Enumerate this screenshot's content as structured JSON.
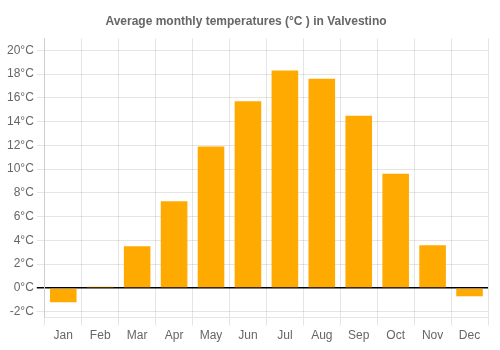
{
  "chart_data": {
    "type": "bar",
    "title": "Average monthly temperatures (°C ) in Valvestino",
    "categories": [
      "Jan",
      "Feb",
      "Mar",
      "Apr",
      "May",
      "Jun",
      "Jul",
      "Aug",
      "Sep",
      "Oct",
      "Nov",
      "Dec"
    ],
    "values": [
      -1.2,
      0.1,
      3.5,
      7.3,
      11.9,
      15.7,
      18.3,
      17.6,
      14.5,
      9.6,
      3.6,
      -0.7
    ],
    "color": "#FFAA00",
    "ylim": [
      -2.5,
      21.0
    ],
    "yticks": [
      {
        "value": -2,
        "label": "-2°C"
      },
      {
        "value": 0,
        "label": "0°C"
      },
      {
        "value": 2,
        "label": "2°C"
      },
      {
        "value": 4,
        "label": "4°C"
      },
      {
        "value": 6,
        "label": "6°C"
      },
      {
        "value": 8,
        "label": "8°C"
      },
      {
        "value": 10,
        "label": "10°C"
      },
      {
        "value": 12,
        "label": "12°C"
      },
      {
        "value": 14,
        "label": "14°C"
      },
      {
        "value": 16,
        "label": "16°C"
      },
      {
        "value": 18,
        "label": "18°C"
      },
      {
        "value": 20,
        "label": "20°C"
      }
    ],
    "grid": true
  }
}
